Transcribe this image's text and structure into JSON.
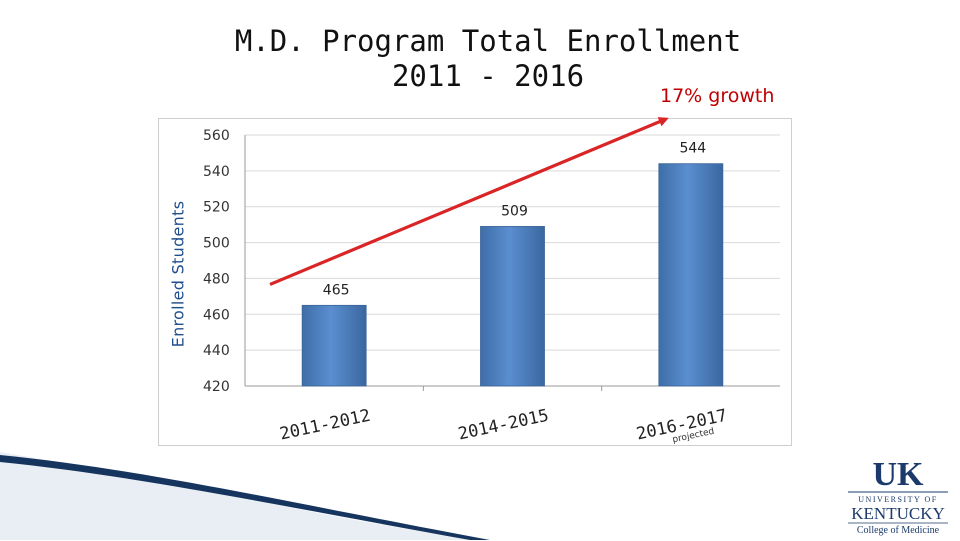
{
  "slide": {
    "title_line1": "M.D. Program Total Enrollment",
    "title_line2": "2011 - 2016",
    "growth_note": "17% growth",
    "growth_color": "#c00000"
  },
  "chart_data": {
    "type": "bar",
    "title": "M.D. Program Total Enrollment 2011 - 2016",
    "xlabel": "",
    "ylabel": "Enrolled Students",
    "categories": [
      "2011-2012",
      "2014-2015",
      "2016-2017"
    ],
    "category_notes": [
      "",
      "",
      "projected"
    ],
    "values": [
      465,
      509,
      544
    ],
    "value_labels": [
      "465",
      "509",
      "544"
    ],
    "ylim": [
      420,
      560
    ],
    "yticks": [
      420,
      440,
      460,
      480,
      500,
      520,
      540,
      560
    ],
    "grid": true,
    "bar_color": "#4f81bd",
    "trend_arrow": {
      "from_value": 480,
      "to_value": 560,
      "color": "#d92525"
    }
  },
  "logo": {
    "mark": "UK",
    "line1": "UNIVERSITY OF",
    "line2": "KENTUCKY",
    "line3": "College of Medicine",
    "color": "#1b3a6b"
  }
}
